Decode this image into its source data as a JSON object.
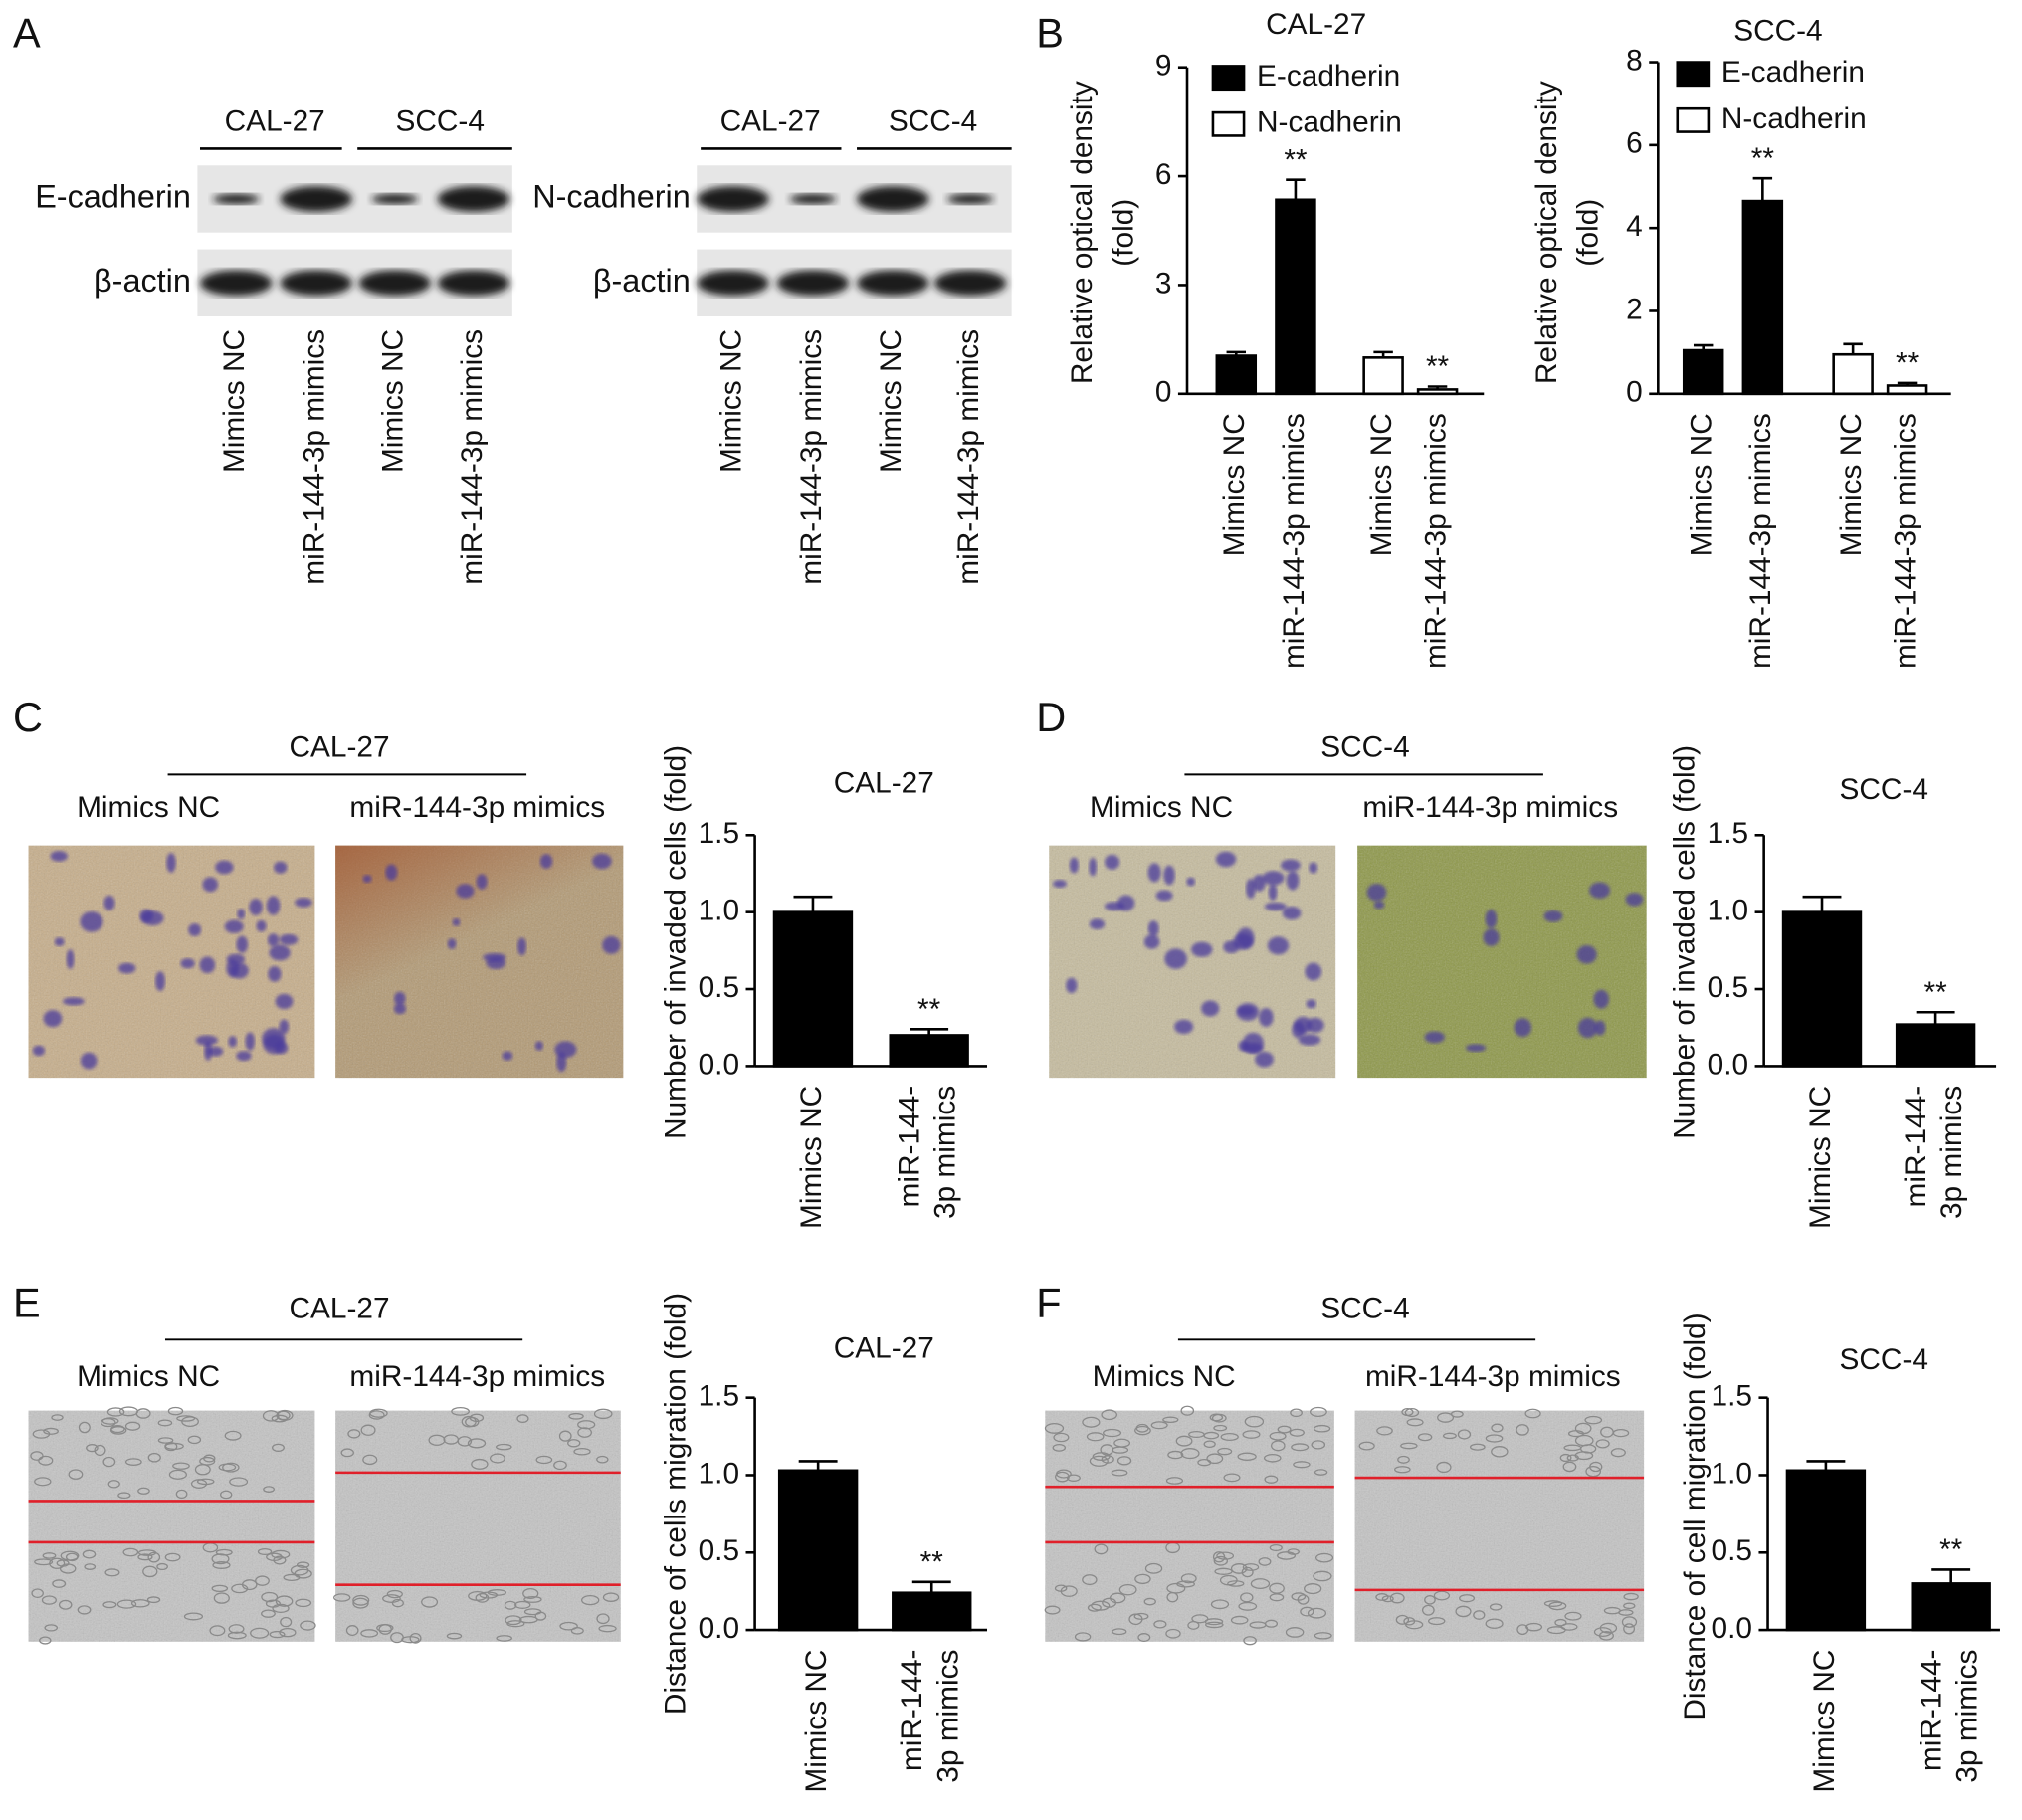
{
  "panel_labels": [
    "A",
    "B",
    "C",
    "D",
    "E",
    "F"
  ],
  "blots": [
    {
      "groups": [
        "CAL-27",
        "SCC-4"
      ],
      "rows": [
        "E-cadherin",
        "β-actin"
      ],
      "lanes": [
        "Mimics NC",
        "miR-144-3p mimics",
        "Mimics NC",
        "miR-144-3p mimics"
      ]
    },
    {
      "groups": [
        "CAL-27",
        "SCC-4"
      ],
      "rows": [
        "N-cadherin",
        "β-actin"
      ],
      "lanes": [
        "Mimics NC",
        "miR-144-3p mimics",
        "Mimics NC",
        "miR-144-3p mimics"
      ]
    }
  ],
  "micrographs": [
    {
      "title": "CAL-27",
      "labels": [
        "Mimics NC",
        "miR-144-3p mimics"
      ]
    },
    {
      "title": "SCC-4",
      "labels": [
        "Mimics NC",
        "miR-144-3p mimics"
      ]
    },
    {
      "title": "CAL-27",
      "labels": [
        "Mimics NC",
        "miR-144-3p mimics"
      ]
    },
    {
      "title": "SCC-4",
      "labels": [
        "Mimics NC",
        "miR-144-3p mimics"
      ]
    }
  ],
  "chart_data": [
    {
      "type": "bar",
      "title": "CAL-27",
      "ylabel": [
        "Relative optical density",
        "(fold)"
      ],
      "categories": [
        [
          "Mimics NC"
        ],
        [
          "miR-144-3p mimics"
        ],
        [
          "Mimics NC"
        ],
        [
          "miR-144-3p mimics"
        ]
      ],
      "series": [
        {
          "name": "E-cadherin",
          "color": "#000000",
          "values": [
            1.05,
            5.35,
            null,
            null
          ],
          "errors": [
            0.1,
            0.55,
            null,
            null
          ]
        },
        {
          "name": "N-cadherin",
          "color": "#ffffff",
          "values": [
            null,
            null,
            1.0,
            0.12
          ],
          "errors": [
            null,
            null,
            0.15,
            0.08
          ]
        }
      ],
      "annotations": [
        null,
        "**",
        null,
        "**"
      ],
      "legend": "upper left",
      "ylim": [
        0,
        9
      ],
      "yticks": [
        0,
        3,
        6,
        9
      ]
    },
    {
      "type": "bar",
      "title": "SCC-4",
      "ylabel": [
        "Relative optical density",
        "(fold)"
      ],
      "categories": [
        [
          "Mimics NC"
        ],
        [
          "miR-144-3p mimics"
        ],
        [
          "Mimics NC"
        ],
        [
          "miR-144-3p mimics"
        ]
      ],
      "series": [
        {
          "name": "E-cadherin",
          "color": "#000000",
          "values": [
            1.05,
            4.65,
            null,
            null
          ],
          "errors": [
            0.12,
            0.55,
            null,
            null
          ]
        },
        {
          "name": "N-cadherin",
          "color": "#ffffff",
          "values": [
            null,
            null,
            0.95,
            0.2
          ],
          "errors": [
            null,
            null,
            0.25,
            0.06
          ]
        }
      ],
      "annotations": [
        null,
        "**",
        null,
        "**"
      ],
      "legend": "upper left",
      "ylim": [
        0,
        8
      ],
      "yticks": [
        0,
        2,
        4,
        6,
        8
      ]
    },
    {
      "type": "bar",
      "title": "CAL-27",
      "ylabel": [
        "Number of invaded cells (fold)"
      ],
      "categories": [
        [
          "Mimics NC"
        ],
        [
          "miR-144-",
          "3p mimics"
        ]
      ],
      "values": [
        1.0,
        0.2
      ],
      "errors": [
        0.1,
        0.04
      ],
      "color": "#000000",
      "annotations": [
        null,
        "**"
      ],
      "ylim": [
        0,
        1.5
      ],
      "yticks": [
        {
          "value": 0,
          "label": "0.0"
        },
        {
          "value": 0.5,
          "label": "0.5"
        },
        {
          "value": 1,
          "label": "1.0"
        },
        {
          "value": 1.5,
          "label": "1.5"
        }
      ]
    },
    {
      "type": "bar",
      "title": "SCC-4",
      "ylabel": [
        "Number of invaded cells (fold)"
      ],
      "categories": [
        [
          "Mimics NC"
        ],
        [
          "miR-144-",
          "3p mimics"
        ]
      ],
      "values": [
        1.0,
        0.27
      ],
      "errors": [
        0.1,
        0.08
      ],
      "color": "#000000",
      "annotations": [
        null,
        "**"
      ],
      "ylim": [
        0,
        1.5
      ],
      "yticks": [
        {
          "value": 0,
          "label": "0.0"
        },
        {
          "value": 0.5,
          "label": "0.5"
        },
        {
          "value": 1,
          "label": "1.0"
        },
        {
          "value": 1.5,
          "label": "1.5"
        }
      ]
    },
    {
      "type": "bar",
      "title": "CAL-27",
      "ylabel": [
        "Distance of cells migration (fold)"
      ],
      "categories": [
        [
          "Mimics NC"
        ],
        [
          "miR-144-",
          "3p mimics"
        ]
      ],
      "values": [
        1.03,
        0.24
      ],
      "errors": [
        0.06,
        0.07
      ],
      "color": "#000000",
      "annotations": [
        null,
        "**"
      ],
      "ylim": [
        0,
        1.5
      ],
      "yticks": [
        {
          "value": 0,
          "label": "0.0"
        },
        {
          "value": 0.5,
          "label": "0.5"
        },
        {
          "value": 1,
          "label": "1.0"
        },
        {
          "value": 1.5,
          "label": "1.5"
        }
      ]
    },
    {
      "type": "bar",
      "title": "SCC-4",
      "ylabel": [
        "Distance of cell migration (fold)"
      ],
      "categories": [
        [
          "Mimics NC"
        ],
        [
          "miR-144-",
          "3p mimics"
        ]
      ],
      "values": [
        1.03,
        0.3
      ],
      "errors": [
        0.06,
        0.09
      ],
      "color": "#000000",
      "annotations": [
        null,
        "**"
      ],
      "ylim": [
        0,
        1.5
      ],
      "yticks": [
        {
          "value": 0,
          "label": "0.0"
        },
        {
          "value": 0.5,
          "label": "0.5"
        },
        {
          "value": 1,
          "label": "1.0"
        },
        {
          "value": 1.5,
          "label": "1.5"
        }
      ]
    }
  ]
}
